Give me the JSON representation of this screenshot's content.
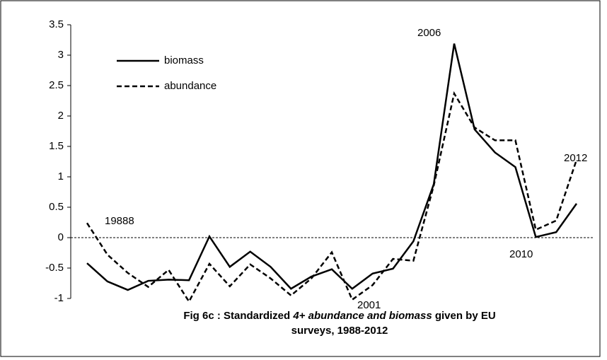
{
  "chart_data": {
    "type": "line",
    "title": {
      "line1": [
        "Fig 6c : Standardized ",
        "4+ abundance and biomass",
        " given by EU"
      ],
      "line2": "surveys, 1988-2012"
    },
    "annotations": [
      "19888",
      "2001",
      "2006",
      "2010",
      "2012"
    ],
    "series": [
      {
        "name": "biomass",
        "color": "#000000",
        "dash": false,
        "values": [
          -0.42,
          -0.72,
          -0.86,
          -0.71,
          -0.69,
          -0.7,
          0.02,
          -0.48,
          -0.23,
          -0.48,
          -0.84,
          -0.64,
          -0.52,
          -0.84,
          -0.59,
          -0.51,
          -0.06,
          0.88,
          3.19,
          1.78,
          1.4,
          1.16,
          0.01,
          0.09,
          0.56
        ]
      },
      {
        "name": "abundance",
        "color": "#000000",
        "dash": true,
        "values": [
          0.24,
          -0.28,
          -0.58,
          -0.81,
          -0.53,
          -1.05,
          -0.43,
          -0.8,
          -0.44,
          -0.67,
          -0.95,
          -0.67,
          -0.24,
          -1.02,
          -0.78,
          -0.35,
          -0.38,
          0.86,
          2.37,
          1.81,
          1.6,
          1.6,
          0.13,
          0.28,
          1.28
        ]
      }
    ],
    "ylim": [
      -1,
      3.5
    ],
    "yticks": [
      -1,
      -0.5,
      0,
      0.5,
      1,
      1.5,
      2,
      2.5,
      3,
      3.5
    ],
    "zero_line": true,
    "legend": "upper left"
  }
}
